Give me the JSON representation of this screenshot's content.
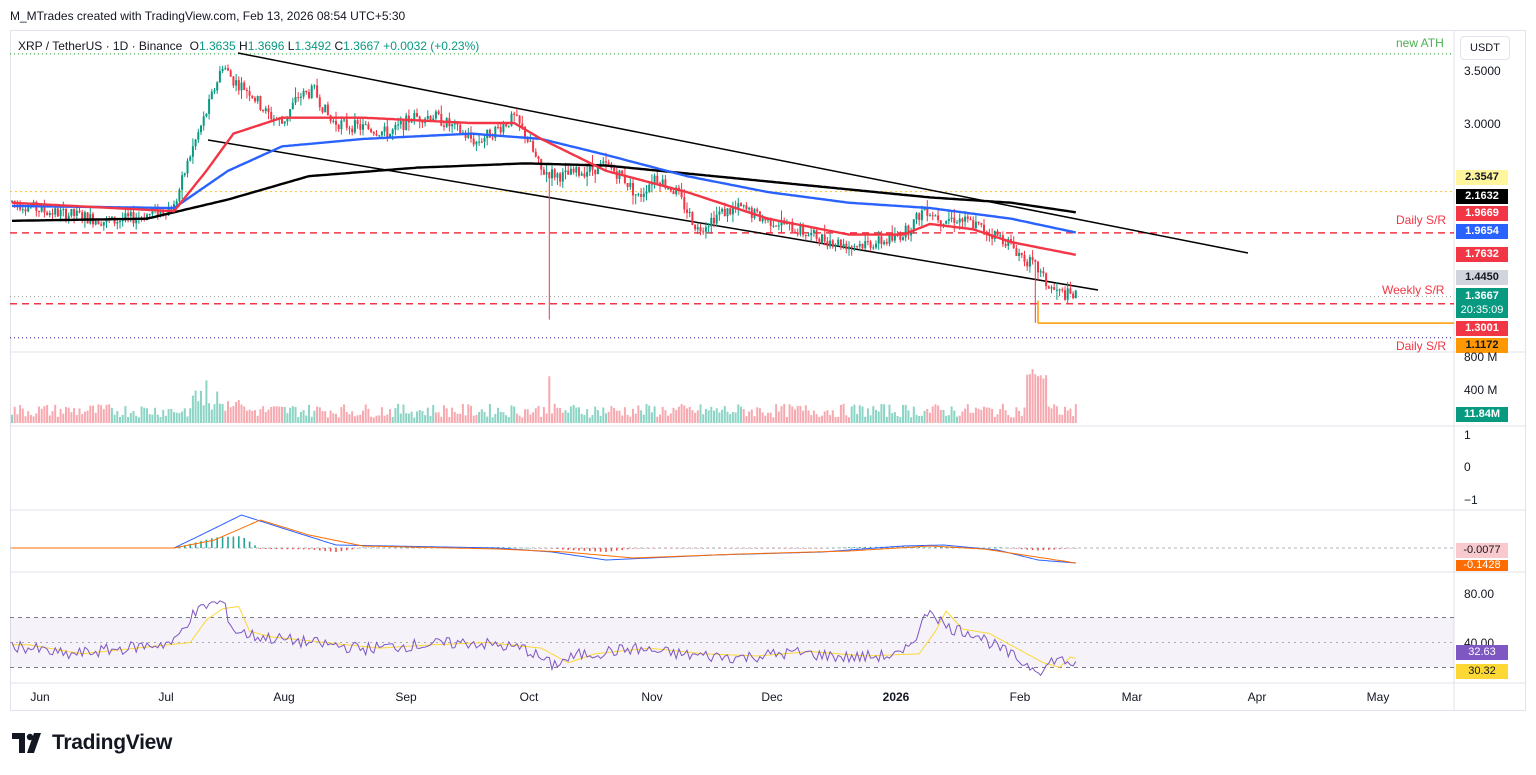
{
  "header": {
    "credit": "M_MTrades created with TradingView.com, Feb 13, 2026 08:54 UTC+5:30",
    "symbol": "XRP / TetherUS · 1D · Binance",
    "open_label": "O",
    "open": "1.3635",
    "high_label": "H",
    "high": "1.3696",
    "low_label": "L",
    "low": "1.3492",
    "close_label": "C",
    "close": "1.3667",
    "change": "+0.0032 (+0.23%)"
  },
  "currency": "USDT",
  "logo": {
    "text": "TradingView",
    "icon": "tradingview-logo-icon"
  },
  "annotations": {
    "ath": "new ATH",
    "daily_sr_top": "Daily S/R",
    "weekly_sr": "Weekly S/R",
    "daily_sr_bottom": "Daily S/R"
  },
  "price_axis": [
    "3.5000",
    "3.0000"
  ],
  "price_badges": {
    "p1": "2.3547",
    "p2": "2.1632",
    "p3": "1.9669",
    "p4": "1.9654",
    "p5": "1.7632",
    "p6": "1.4450",
    "p7": "1.3667",
    "countdown": "20:35:09",
    "p8": "1.3001",
    "p9": "1.1172"
  },
  "volume_axis": [
    "800 M",
    "400 M"
  ],
  "volume_badge": "11.84M",
  "osc_axis": [
    "1",
    "0",
    "−1"
  ],
  "macd_badges": {
    "a": "-0.0077",
    "b": "-0.1428"
  },
  "rsi_axis": [
    "80.00",
    "40.00"
  ],
  "rsi_badges": {
    "a": "32.63",
    "b": "30.32"
  },
  "x_labels": [
    "Jun",
    "Jul",
    "Aug",
    "Sep",
    "Oct",
    "Nov",
    "Dec",
    "2026",
    "Feb",
    "Mar",
    "Apr",
    "May"
  ],
  "colors": {
    "up": "#089981",
    "down": "#f23645",
    "ema50": "#f23645",
    "ema100": "#2962ff",
    "ema200": "#000000",
    "ath_line": "#4caf50",
    "support": "#ff9800",
    "rsi": "#7e57c2",
    "rsi_ma": "#fdd835"
  },
  "chart_data": {
    "type": "candlestick",
    "series_keypoints": {
      "price_close": [
        [
          0,
          2.26
        ],
        [
          12,
          2.17
        ],
        [
          24,
          2.13
        ],
        [
          36,
          2.07
        ],
        [
          48,
          2.12
        ],
        [
          60,
          2.21
        ],
        [
          66,
          2.7
        ],
        [
          72,
          3.1
        ],
        [
          78,
          3.55
        ],
        [
          82,
          3.4
        ],
        [
          88,
          3.3
        ],
        [
          94,
          3.1
        ],
        [
          100,
          3.0
        ],
        [
          106,
          3.25
        ],
        [
          112,
          3.3
        ],
        [
          118,
          3.02
        ],
        [
          124,
          2.98
        ],
        [
          132,
          2.95
        ],
        [
          140,
          2.9
        ],
        [
          148,
          3.05
        ],
        [
          156,
          3.07
        ],
        [
          164,
          2.95
        ],
        [
          172,
          2.82
        ],
        [
          180,
          2.95
        ],
        [
          186,
          3.05
        ],
        [
          190,
          2.9
        ],
        [
          196,
          2.55
        ],
        [
          204,
          2.5
        ],
        [
          212,
          2.55
        ],
        [
          220,
          2.6
        ],
        [
          226,
          2.5
        ],
        [
          232,
          2.3
        ],
        [
          238,
          2.5
        ],
        [
          246,
          2.35
        ],
        [
          254,
          2.0
        ],
        [
          262,
          2.15
        ],
        [
          270,
          2.2
        ],
        [
          278,
          2.1
        ],
        [
          286,
          2.05
        ],
        [
          294,
          1.96
        ],
        [
          302,
          1.9
        ],
        [
          310,
          1.85
        ],
        [
          318,
          1.87
        ],
        [
          326,
          1.9
        ],
        [
          332,
          2.0
        ],
        [
          338,
          2.2
        ],
        [
          344,
          2.1
        ],
        [
          350,
          2.1
        ],
        [
          356,
          2.05
        ],
        [
          362,
          1.97
        ],
        [
          368,
          1.9
        ],
        [
          374,
          1.75
        ],
        [
          380,
          1.62
        ],
        [
          384,
          1.45
        ],
        [
          388,
          1.4
        ],
        [
          394,
          1.37
        ]
      ],
      "ema50": [
        [
          0,
          2.25
        ],
        [
          60,
          2.17
        ],
        [
          72,
          2.55
        ],
        [
          82,
          2.9
        ],
        [
          100,
          3.05
        ],
        [
          130,
          3.05
        ],
        [
          170,
          3.0
        ],
        [
          186,
          3.0
        ],
        [
          196,
          2.85
        ],
        [
          220,
          2.55
        ],
        [
          250,
          2.35
        ],
        [
          280,
          2.1
        ],
        [
          310,
          1.95
        ],
        [
          330,
          1.95
        ],
        [
          340,
          2.05
        ],
        [
          356,
          2.0
        ],
        [
          370,
          1.88
        ],
        [
          394,
          1.76
        ]
      ],
      "ema100": [
        [
          0,
          2.22
        ],
        [
          60,
          2.2
        ],
        [
          80,
          2.55
        ],
        [
          100,
          2.78
        ],
        [
          130,
          2.85
        ],
        [
          170,
          2.9
        ],
        [
          196,
          2.85
        ],
        [
          220,
          2.7
        ],
        [
          250,
          2.5
        ],
        [
          280,
          2.35
        ],
        [
          310,
          2.25
        ],
        [
          340,
          2.2
        ],
        [
          370,
          2.1
        ],
        [
          394,
          1.97
        ]
      ],
      "ema200": [
        [
          0,
          2.08
        ],
        [
          50,
          2.1
        ],
        [
          80,
          2.28
        ],
        [
          110,
          2.5
        ],
        [
          150,
          2.58
        ],
        [
          190,
          2.62
        ],
        [
          220,
          2.6
        ],
        [
          260,
          2.5
        ],
        [
          300,
          2.4
        ],
        [
          340,
          2.3
        ],
        [
          370,
          2.25
        ],
        [
          394,
          2.16
        ]
      ]
    },
    "levels": {
      "ath": 3.65,
      "yellow_dotted": 2.3547,
      "daily_sr_top": 1.9669,
      "weekly_sr": 1.3667,
      "daily_sr_bottom": 1.3001,
      "support": 1.1172
    },
    "volume": {
      "recent": 11.84,
      "unit": "M"
    },
    "macd": {
      "macd": -0.0077,
      "signal": -0.1428
    },
    "rsi": {
      "rsi": 32.63,
      "ma": 30.32,
      "upper": 70,
      "lower": 30
    },
    "xlabels": [
      "Jun",
      "Jul",
      "Aug",
      "Sep",
      "Oct",
      "Nov",
      "Dec",
      "2026",
      "Feb",
      "Mar",
      "Apr",
      "May"
    ]
  }
}
